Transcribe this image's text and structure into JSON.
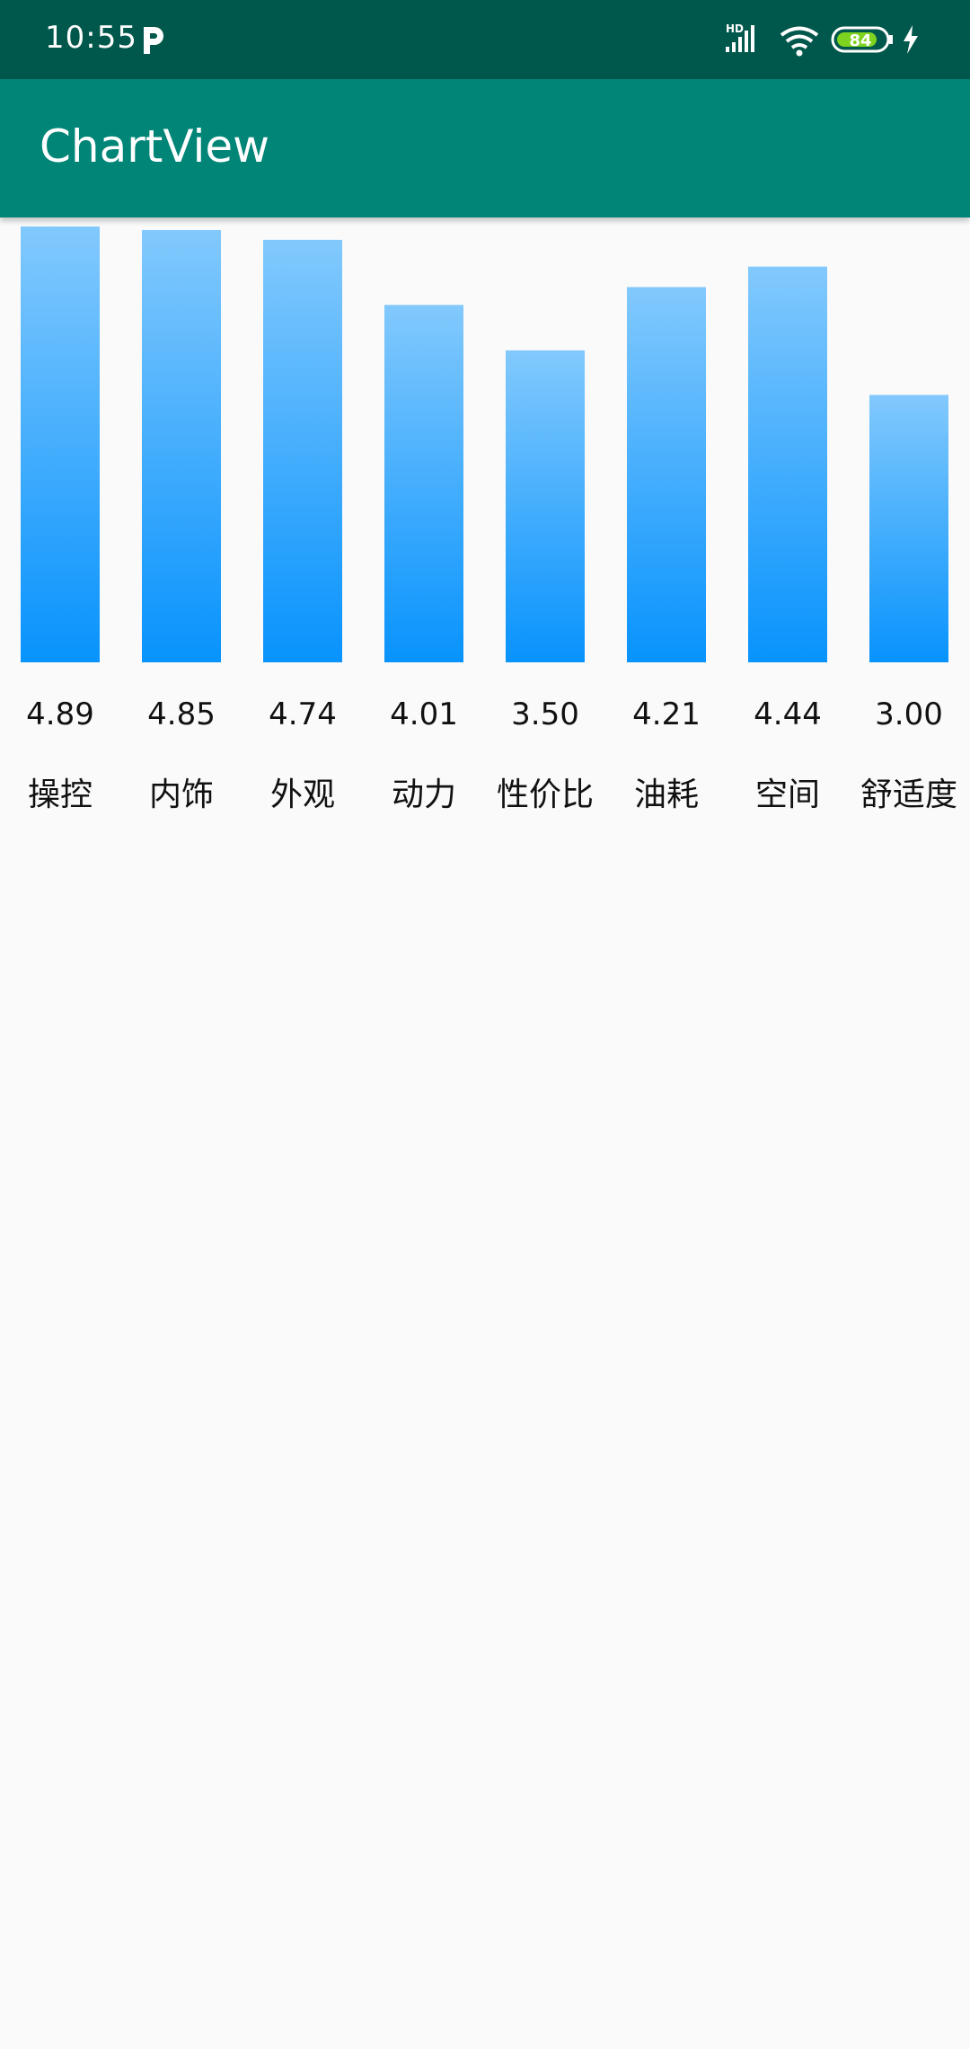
{
  "status_bar": {
    "time": "10:55",
    "network_label": "HD",
    "battery": "84",
    "icons": [
      "p-icon",
      "hd-signal-icon",
      "wifi-icon",
      "battery-icon",
      "charging-bolt-icon"
    ]
  },
  "app_bar": {
    "title": "ChartView"
  },
  "colors": {
    "status_bar": "#00574b",
    "app_bar": "#008577",
    "bar_top": "#82c9fd",
    "bar_bottom": "#0893fd",
    "background": "#fafafa",
    "battery_fill": "#7ed321"
  },
  "chart_data": {
    "type": "bar",
    "categories": [
      "操控",
      "内饰",
      "外观",
      "动力",
      "性价比",
      "油耗",
      "空间",
      "舒适度"
    ],
    "values": [
      4.89,
      4.85,
      4.74,
      4.01,
      3.5,
      4.21,
      4.44,
      3.0
    ],
    "value_labels": [
      "4.89",
      "4.85",
      "4.74",
      "4.01",
      "3.50",
      "4.21",
      "4.44",
      "3.00"
    ],
    "ylim": [
      0,
      4.89
    ],
    "grid": false,
    "legend": "none"
  }
}
